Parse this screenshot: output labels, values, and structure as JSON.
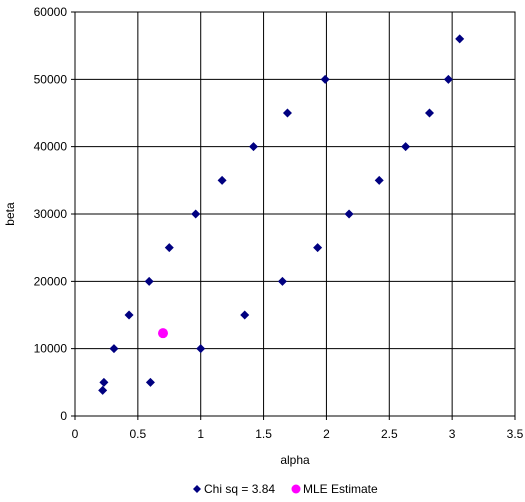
{
  "chart_data": {
    "type": "scatter",
    "title": "",
    "xlabel": "alpha",
    "ylabel": "beta",
    "xlim": [
      0,
      3.5
    ],
    "ylim": [
      0,
      60000
    ],
    "xticks": [
      0,
      0.5,
      1,
      1.5,
      2,
      2.5,
      3,
      3.5
    ],
    "xtick_labels": [
      "0",
      "0.5",
      "1",
      "1.5",
      "2",
      "2.5",
      "3",
      "3.5"
    ],
    "yticks": [
      0,
      10000,
      20000,
      30000,
      40000,
      50000,
      60000
    ],
    "ytick_labels": [
      "0",
      "10000",
      "20000",
      "30000",
      "40000",
      "50000",
      "60000"
    ],
    "grid": true,
    "legend_position": "bottom",
    "series": [
      {
        "name": "Chi sq = 3.84",
        "color": "#000080",
        "marker": "diamond",
        "points": [
          [
            0.22,
            3800
          ],
          [
            0.23,
            5000
          ],
          [
            0.31,
            10000
          ],
          [
            0.43,
            15000
          ],
          [
            0.59,
            20000
          ],
          [
            0.75,
            25000
          ],
          [
            0.96,
            30000
          ],
          [
            1.17,
            35000
          ],
          [
            1.42,
            40000
          ],
          [
            1.69,
            45000
          ],
          [
            1.99,
            50000
          ],
          [
            0.6,
            5000
          ],
          [
            1.0,
            10000
          ],
          [
            1.35,
            15000
          ],
          [
            1.65,
            20000
          ],
          [
            1.93,
            25000
          ],
          [
            2.18,
            30000
          ],
          [
            2.42,
            35000
          ],
          [
            2.63,
            40000
          ],
          [
            2.82,
            45000
          ],
          [
            2.97,
            50000
          ],
          [
            3.06,
            56000
          ]
        ]
      },
      {
        "name": "MLE Estimate",
        "color": "#ff00ff",
        "marker": "circle",
        "points": [
          [
            0.7,
            12300
          ]
        ]
      }
    ]
  }
}
